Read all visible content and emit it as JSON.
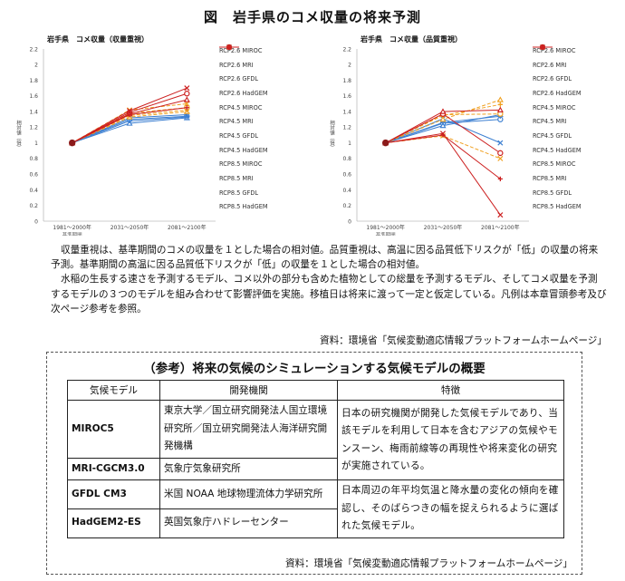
{
  "figure_title": "図　岩手県のコメ収量の将来予測",
  "chart_data": [
    {
      "type": "line",
      "title": "岩手県　コメ収量（収量重視）",
      "ylabel": "相対値（倍）",
      "xlabel": "基準期間",
      "categories": [
        "1981～2000年",
        "2031～2050年",
        "2081～2100年"
      ],
      "ylim": [
        0,
        2.2
      ],
      "yticks": [
        0,
        0.2,
        0.4,
        0.6,
        0.8,
        1,
        1.2,
        1.4,
        1.6,
        1.8,
        2,
        2.2
      ],
      "legend_position": "right",
      "series": [
        {
          "name": "RCP2.6 MIROC",
          "color": "#3c7fd1",
          "dash": "solid",
          "marker": "circle-open",
          "values": [
            1,
            1.3,
            1.34
          ]
        },
        {
          "name": "RCP2.6 MRI",
          "color": "#3c7fd1",
          "dash": "solid",
          "marker": "triangle-open",
          "values": [
            1,
            1.25,
            1.32
          ]
        },
        {
          "name": "RCP2.6 GFDL",
          "color": "#3c7fd1",
          "dash": "solid",
          "marker": "x",
          "values": [
            1,
            1.32,
            1.36
          ]
        },
        {
          "name": "RCP2.6 HadGEM",
          "color": "#3c7fd1",
          "dash": "solid",
          "marker": "plus",
          "values": [
            1,
            1.28,
            1.33
          ]
        },
        {
          "name": "RCP4.5 MIROC",
          "color": "#f0a020",
          "dash": "dashed",
          "marker": "circle-open",
          "values": [
            1,
            1.38,
            1.45
          ]
        },
        {
          "name": "RCP4.5 MRI",
          "color": "#f0a020",
          "dash": "dashed",
          "marker": "triangle-open",
          "values": [
            1,
            1.33,
            1.4
          ]
        },
        {
          "name": "RCP4.5 GFDL",
          "color": "#f0a020",
          "dash": "dashed",
          "marker": "x",
          "values": [
            1,
            1.42,
            1.5
          ]
        },
        {
          "name": "RCP4.5 HadGEM",
          "color": "#f0a020",
          "dash": "dashed",
          "marker": "plus",
          "values": [
            1,
            1.35,
            1.42
          ]
        },
        {
          "name": "RCP8.5 MIROC",
          "color": "#cc1f1f",
          "dash": "solid",
          "marker": "circle-open",
          "values": [
            1,
            1.39,
            1.63
          ]
        },
        {
          "name": "RCP8.5 MRI",
          "color": "#cc1f1f",
          "dash": "solid",
          "marker": "triangle-open",
          "values": [
            1,
            1.37,
            1.55
          ]
        },
        {
          "name": "RCP8.5 GFDL",
          "color": "#cc1f1f",
          "dash": "solid",
          "marker": "x",
          "values": [
            1,
            1.41,
            1.7
          ]
        },
        {
          "name": "RCP8.5 HadGEM",
          "color": "#cc1f1f",
          "dash": "solid",
          "marker": "plus",
          "values": [
            1,
            1.36,
            1.45
          ]
        }
      ]
    },
    {
      "type": "line",
      "title": "岩手県　コメ収量（品質重視）",
      "ylabel": "相対値（倍）",
      "xlabel": "基準期間",
      "categories": [
        "1981～2000年",
        "2031～2050年",
        "2081～2100年"
      ],
      "ylim": [
        0,
        2.2
      ],
      "yticks": [
        0,
        0.2,
        0.4,
        0.6,
        0.8,
        1,
        1.2,
        1.4,
        1.6,
        1.8,
        2,
        2.2
      ],
      "legend_position": "right",
      "series": [
        {
          "name": "RCP2.6 MIROC",
          "color": "#3c7fd1",
          "dash": "solid",
          "marker": "circle-open",
          "values": [
            1,
            1.25,
            1.3
          ]
        },
        {
          "name": "RCP2.6 MRI",
          "color": "#3c7fd1",
          "dash": "solid",
          "marker": "triangle-open",
          "values": [
            1,
            1.22,
            1.36
          ]
        },
        {
          "name": "RCP2.6 GFDL",
          "color": "#3c7fd1",
          "dash": "solid",
          "marker": "x",
          "values": [
            1,
            1.31,
            1.0
          ]
        },
        {
          "name": "RCP2.6 HadGEM",
          "color": "#3c7fd1",
          "dash": "solid",
          "marker": "plus",
          "values": [
            1,
            1.26,
            1.34
          ]
        },
        {
          "name": "RCP4.5 MIROC",
          "color": "#f0a020",
          "dash": "dashed",
          "marker": "circle-open",
          "values": [
            1,
            1.36,
            1.37
          ]
        },
        {
          "name": "RCP4.5 MRI",
          "color": "#f0a020",
          "dash": "dashed",
          "marker": "triangle-open",
          "values": [
            1,
            1.3,
            1.55
          ]
        },
        {
          "name": "RCP4.5 GFDL",
          "color": "#f0a020",
          "dash": "dashed",
          "marker": "x",
          "values": [
            1,
            1.09,
            0.8
          ]
        },
        {
          "name": "RCP4.5 HadGEM",
          "color": "#f0a020",
          "dash": "dashed",
          "marker": "plus",
          "values": [
            1,
            1.35,
            1.49
          ]
        },
        {
          "name": "RCP8.5 MIROC",
          "color": "#cc1f1f",
          "dash": "solid",
          "marker": "circle-open",
          "values": [
            1,
            1.37,
            0.87
          ]
        },
        {
          "name": "RCP8.5 MRI",
          "color": "#cc1f1f",
          "dash": "solid",
          "marker": "triangle-open",
          "values": [
            1,
            1.4,
            1.42
          ]
        },
        {
          "name": "RCP8.5 GFDL",
          "color": "#cc1f1f",
          "dash": "solid",
          "marker": "x",
          "values": [
            1,
            1.12,
            0.08
          ]
        },
        {
          "name": "RCP8.5 HadGEM",
          "color": "#cc1f1f",
          "dash": "solid",
          "marker": "plus",
          "values": [
            1,
            1.1,
            0.54
          ]
        }
      ]
    }
  ],
  "description": {
    "p1": "収量重視は、基準期間のコメの収量を１とした場合の相対値。品質重視は、高温に因る品質低下リスクが「低」の収量の将来予測。基準期間の高温に因る品質低下リスクが「低」の収量を１とした場合の相対値。",
    "p2": "水稲の生長する速さを予測するモデル、コメ以外の部分も含めた植物としての総量を予測するモデル、そしてコメ収量を予測するモデルの３つのモデルを組み合わせて影響評価を実施。移植日は将来に渡って一定と仮定している。凡例は本章冒頭参考及び次ページ参考を参照。"
  },
  "source_top": "資料：環境省「気候変動適応情報プラットフォームホームページ」",
  "reference": {
    "title": "（参考）将来の気候のシミュレーションする気候モデルの概要",
    "headers": [
      "気候モデル",
      "開発機関",
      "特徴"
    ],
    "rows": [
      {
        "model": "MIROC5",
        "org": "東京大学／国立研究開発法人国立環境研究所／国立研究開発法人海洋研究開発機構"
      },
      {
        "model": "MRI-CGCM3.0",
        "org": "気象庁気象研究所"
      },
      {
        "model": "GFDL CM3",
        "org": "米国 NOAA 地球物理流体力学研究所"
      },
      {
        "model": "HadGEM2-ES",
        "org": "英国気象庁ハドレーセンター"
      }
    ],
    "feature_japan": "日本の研究機関が開発した気候モデルであり、当該モデルを利用して日本を含むアジアの気候やモンスーン、梅雨前線等の再現性や将来変化の研究が実施されている。",
    "feature_foreign": "日本周辺の年平均気温と降水量の変化の傾向を確認し、そのばらつきの幅を捉えられるように選ばれた気候モデル。",
    "source": "資料：環境省「気候変動適応情報プラットフォームホームページ」"
  }
}
